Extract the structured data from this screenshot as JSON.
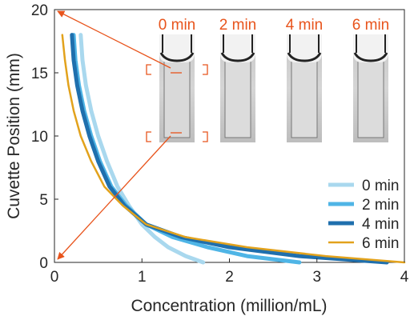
{
  "chart_data": {
    "type": "scatter",
    "xlabel": "Concentration (million/mL)",
    "ylabel": "Cuvette Position (mm)",
    "xlim": [
      0,
      4
    ],
    "ylim": [
      0,
      20
    ],
    "xticks": [
      "0",
      "1",
      "2",
      "3",
      "4"
    ],
    "yticks": [
      "0",
      "5",
      "10",
      "15",
      "20"
    ],
    "grid": false,
    "legend_position": "bottom-right",
    "series": [
      {
        "name": "0 min",
        "color": "#a9d8ee",
        "x": [
          0.3,
          0.32,
          0.36,
          0.42,
          0.5,
          0.6,
          0.72,
          0.85,
          1.0,
          1.15,
          1.3,
          1.5,
          1.7
        ],
        "y": [
          18.0,
          16.0,
          14.0,
          12.0,
          10.0,
          8.0,
          6.0,
          4.5,
          3.0,
          2.0,
          1.2,
          0.5,
          0.0
        ]
      },
      {
        "name": "2 min",
        "color": "#4fb5e6",
        "x": [
          0.22,
          0.24,
          0.28,
          0.34,
          0.42,
          0.52,
          0.65,
          0.82,
          1.05,
          1.35,
          1.75,
          2.2,
          2.8
        ],
        "y": [
          18.0,
          16.0,
          14.0,
          12.0,
          10.0,
          8.0,
          6.0,
          4.5,
          3.0,
          2.0,
          1.2,
          0.5,
          0.0
        ]
      },
      {
        "name": "4 min",
        "color": "#1f6fad",
        "x": [
          0.2,
          0.22,
          0.26,
          0.32,
          0.4,
          0.5,
          0.63,
          0.8,
          1.05,
          1.45,
          2.0,
          2.8,
          3.8
        ],
        "y": [
          18.0,
          16.0,
          14.0,
          12.0,
          10.0,
          8.0,
          6.0,
          4.5,
          3.0,
          2.0,
          1.2,
          0.5,
          0.0
        ]
      },
      {
        "name": "6 min",
        "color": "#e2a21c",
        "x": [
          0.09,
          0.12,
          0.16,
          0.22,
          0.3,
          0.42,
          0.57,
          0.78,
          1.05,
          1.5,
          2.2,
          3.1,
          4.0
        ],
        "y": [
          18.0,
          16.0,
          14.0,
          12.0,
          10.0,
          8.0,
          6.0,
          4.5,
          3.0,
          2.0,
          1.2,
          0.5,
          0.0
        ]
      }
    ],
    "annotations": {
      "inset_times": [
        "0 min",
        "2 min",
        "4 min",
        "6 min"
      ],
      "time_label_color": "#e8541c",
      "marker_color": "#e8541c"
    }
  }
}
